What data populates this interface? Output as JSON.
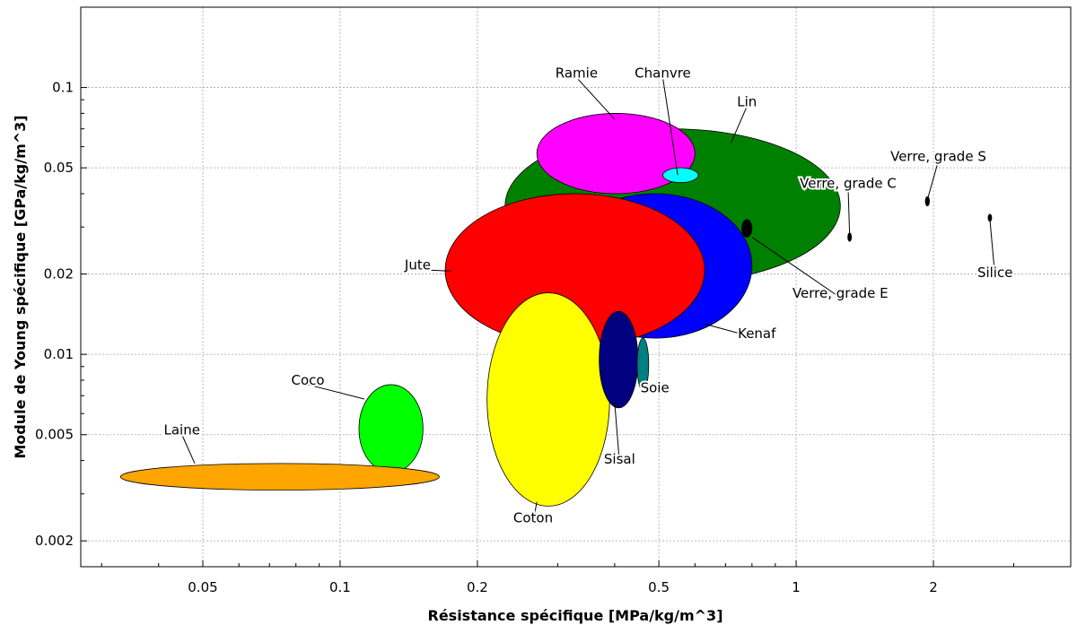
{
  "chart_data": {
    "type": "scatter",
    "title": "",
    "xlabel": "Résistance spécifique [MPa/kg/m^3]",
    "ylabel": "Module de Young spécifique [GPa/kg/m^3]",
    "x_scale": "log",
    "y_scale": "log",
    "xlim": [
      0.027,
      4.0
    ],
    "ylim": [
      0.0016,
      0.2
    ],
    "x_ticks": [
      0.05,
      0.1,
      0.2,
      0.5,
      1,
      2
    ],
    "x_tick_labels": [
      "0.05",
      "0.1",
      "0.2",
      "0.5",
      "1",
      "2"
    ],
    "y_ticks": [
      0.002,
      0.005,
      0.01,
      0.02,
      0.05,
      0.1
    ],
    "y_tick_labels": [
      "0.002",
      "0.005",
      "0.01",
      "0.02",
      "0.05",
      "0.1"
    ],
    "grid": true,
    "materials": [
      {
        "name": "Lin",
        "color": "#008000",
        "x_range": [
          0.23,
          1.25
        ],
        "y_range": [
          0.0185,
          0.07
        ],
        "label": "Lin",
        "label_at": [
          0.78,
          0.085
        ],
        "leader_to": [
          0.72,
          0.062
        ]
      },
      {
        "name": "Kenaf",
        "color": "#0000ff",
        "x_range": [
          0.3,
          0.8
        ],
        "y_range": [
          0.0115,
          0.04
        ],
        "label": "Kenaf",
        "label_at": [
          0.82,
          0.0115
        ],
        "leader_to": [
          0.63,
          0.013
        ]
      },
      {
        "name": "Ramie",
        "color": "#ff00ff",
        "x_range": [
          0.27,
          0.6
        ],
        "y_range": [
          0.04,
          0.08
        ],
        "label": "Ramie",
        "label_at": [
          0.33,
          0.109
        ],
        "leader_to": [
          0.4,
          0.076
        ]
      },
      {
        "name": "Jute",
        "color": "#ff0000",
        "x_range": [
          0.17,
          0.63
        ],
        "y_range": [
          0.0107,
          0.04
        ],
        "label": "Jute",
        "label_at": [
          0.148,
          0.0208
        ],
        "leader_to": [
          0.175,
          0.0205
        ]
      },
      {
        "name": "Chanvre",
        "color": "#00ffff",
        "x_range": [
          0.51,
          0.61
        ],
        "y_range": [
          0.044,
          0.05
        ],
        "label": "Chanvre",
        "label_at": [
          0.51,
          0.109
        ],
        "leader_to": [
          0.55,
          0.047
        ]
      },
      {
        "name": "Coton",
        "color": "#ffff00",
        "x_range": [
          0.21,
          0.39
        ],
        "y_range": [
          0.0027,
          0.017
        ],
        "label": "Coton",
        "label_at": [
          0.265,
          0.00235
        ],
        "leader_to": [
          0.27,
          0.0028
        ]
      },
      {
        "name": "Sisal",
        "color": "#000080",
        "x_range": [
          0.37,
          0.45
        ],
        "y_range": [
          0.0063,
          0.0145
        ],
        "label": "Sisal",
        "label_at": [
          0.41,
          0.0039
        ],
        "leader_to": [
          0.4,
          0.0066
        ]
      },
      {
        "name": "Soie",
        "color": "#008080",
        "x_range": [
          0.448,
          0.475
        ],
        "y_range": [
          0.0073,
          0.0115
        ],
        "label": "Soie",
        "label_at": [
          0.49,
          0.0072
        ],
        "leader_to": [
          0.47,
          0.0077
        ]
      },
      {
        "name": "Coco",
        "color": "#00ff00",
        "x_range": [
          0.11,
          0.152
        ],
        "y_range": [
          0.0036,
          0.0077
        ],
        "label": "Coco",
        "label_at": [
          0.085,
          0.0077
        ],
        "leader_to": [
          0.113,
          0.0068
        ]
      },
      {
        "name": "Laine",
        "color": "#ffa500",
        "x_range": [
          0.033,
          0.165
        ],
        "y_range": [
          0.0031,
          0.0039
        ],
        "label": "Laine",
        "label_at": [
          0.045,
          0.005
        ],
        "leader_to": [
          0.048,
          0.0039
        ]
      },
      {
        "name": "Verre, grade E",
        "color": "#000000",
        "x_range": [
          0.76,
          0.8
        ],
        "y_range": [
          0.0275,
          0.032
        ],
        "label": "Verre,  grade E",
        "label_at": [
          1.25,
          0.0163
        ],
        "leader_to": [
          0.8,
          0.0275
        ]
      },
      {
        "name": "Verre, grade C",
        "color": "#000000",
        "x_range": [
          1.3,
          1.32
        ],
        "y_range": [
          0.0265,
          0.0285
        ],
        "label": "Verre, grade C",
        "label_at": [
          1.3,
          0.042
        ],
        "leader_to": [
          1.31,
          0.028
        ]
      },
      {
        "name": "Verre, grade S",
        "color": "#000000",
        "x_range": [
          1.92,
          1.96
        ],
        "y_range": [
          0.036,
          0.039
        ],
        "label": "Verre, grade S",
        "label_at": [
          2.05,
          0.053
        ],
        "leader_to": [
          1.94,
          0.038
        ]
      },
      {
        "name": "Silice",
        "color": "#000000",
        "x_range": [
          2.64,
          2.68
        ],
        "y_range": [
          0.0315,
          0.0335
        ],
        "label": "Silice",
        "label_at": [
          2.73,
          0.0195
        ],
        "leader_to": [
          2.66,
          0.032
        ]
      }
    ]
  }
}
